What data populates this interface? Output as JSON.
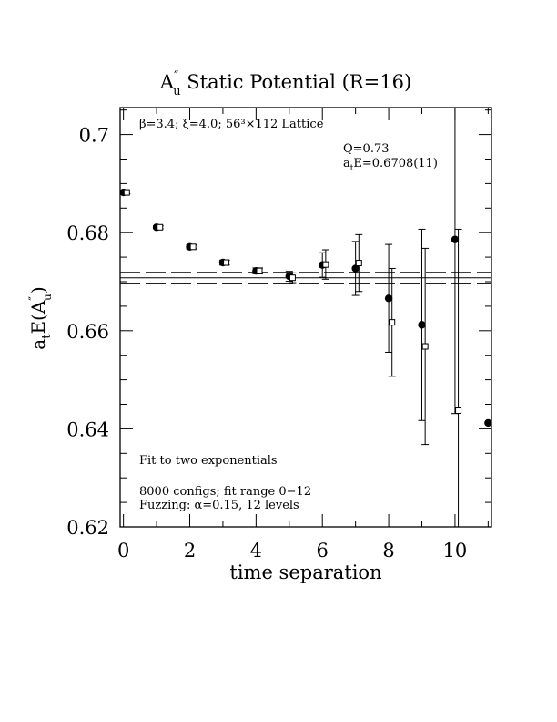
{
  "chart_data": {
    "type": "scatter",
    "title": {
      "prefix": "A",
      "sup": "″",
      "sub": "u",
      "rest": "  Static Potential (R=16)"
    },
    "xlabel": "time separation",
    "ylabel": {
      "a": "a",
      "t": "t",
      "E": "E(A",
      "sup": "″",
      "sub": "u",
      "close": ")"
    },
    "xlim": [
      -0.1,
      11.1
    ],
    "ylim": [
      0.62,
      0.7055
    ],
    "x_ticks": [
      "0",
      "2",
      "4",
      "6",
      "8",
      "10"
    ],
    "y_ticks": [
      "0.62",
      "0.64",
      "0.66",
      "0.68",
      "0.7"
    ],
    "annotations": {
      "lattice": "β=3.4; ξ=4.0; 56³×112 Lattice",
      "q": "Q=0.73",
      "energy_a": "a",
      "energy_t": "t",
      "energy_rest": "E=0.6708(11)",
      "fit": "Fit to two exponentials",
      "configs": "8000 configs; fit range 0−12",
      "fuzzing": "Fuzzing: α=0.15, 12 levels"
    },
    "fit": {
      "value": 0.6708,
      "band": [
        0.6697,
        0.6719
      ],
      "x_range": [
        -0.1,
        11.1
      ]
    },
    "series": [
      {
        "marker": "filled-circle",
        "points": [
          {
            "x": 0,
            "y": 0.6882,
            "err": 0.0003
          },
          {
            "x": 1,
            "y": 0.6811,
            "err": 0.0003
          },
          {
            "x": 2,
            "y": 0.6771,
            "err": 0.0004
          },
          {
            "x": 3,
            "y": 0.6739,
            "err": 0.0005
          },
          {
            "x": 4,
            "y": 0.6722,
            "err": 0.0006
          },
          {
            "x": 5,
            "y": 0.6711,
            "err": 0.001
          },
          {
            "x": 6,
            "y": 0.6734,
            "err": 0.0025
          },
          {
            "x": 7,
            "y": 0.6727,
            "err": 0.0055
          },
          {
            "x": 8,
            "y": 0.6666,
            "err": 0.011
          },
          {
            "x": 9,
            "y": 0.6612,
            "err": 0.0195
          },
          {
            "x": 10,
            "y": 0.6786,
            "err": 0.0355
          },
          {
            "x": 11,
            "y": 0.6412,
            "err": 0.0
          }
        ]
      },
      {
        "marker": "open-square",
        "points": [
          {
            "x": 0.1,
            "y": 0.6882,
            "err": 0.0003
          },
          {
            "x": 1.1,
            "y": 0.6811,
            "err": 0.0003
          },
          {
            "x": 2.1,
            "y": 0.6771,
            "err": 0.0004
          },
          {
            "x": 3.1,
            "y": 0.6739,
            "err": 0.0005
          },
          {
            "x": 4.1,
            "y": 0.6722,
            "err": 0.0006
          },
          {
            "x": 5.1,
            "y": 0.6708,
            "err": 0.001
          },
          {
            "x": 6.1,
            "y": 0.6735,
            "err": 0.003
          },
          {
            "x": 7.1,
            "y": 0.6738,
            "err": 0.0058
          },
          {
            "x": 8.1,
            "y": 0.6617,
            "err": 0.011
          },
          {
            "x": 9.1,
            "y": 0.6568,
            "err": 0.02
          },
          {
            "x": 10.1,
            "y": 0.6437,
            "err": 0.037
          }
        ]
      }
    ],
    "grid": false,
    "legend": "none"
  }
}
